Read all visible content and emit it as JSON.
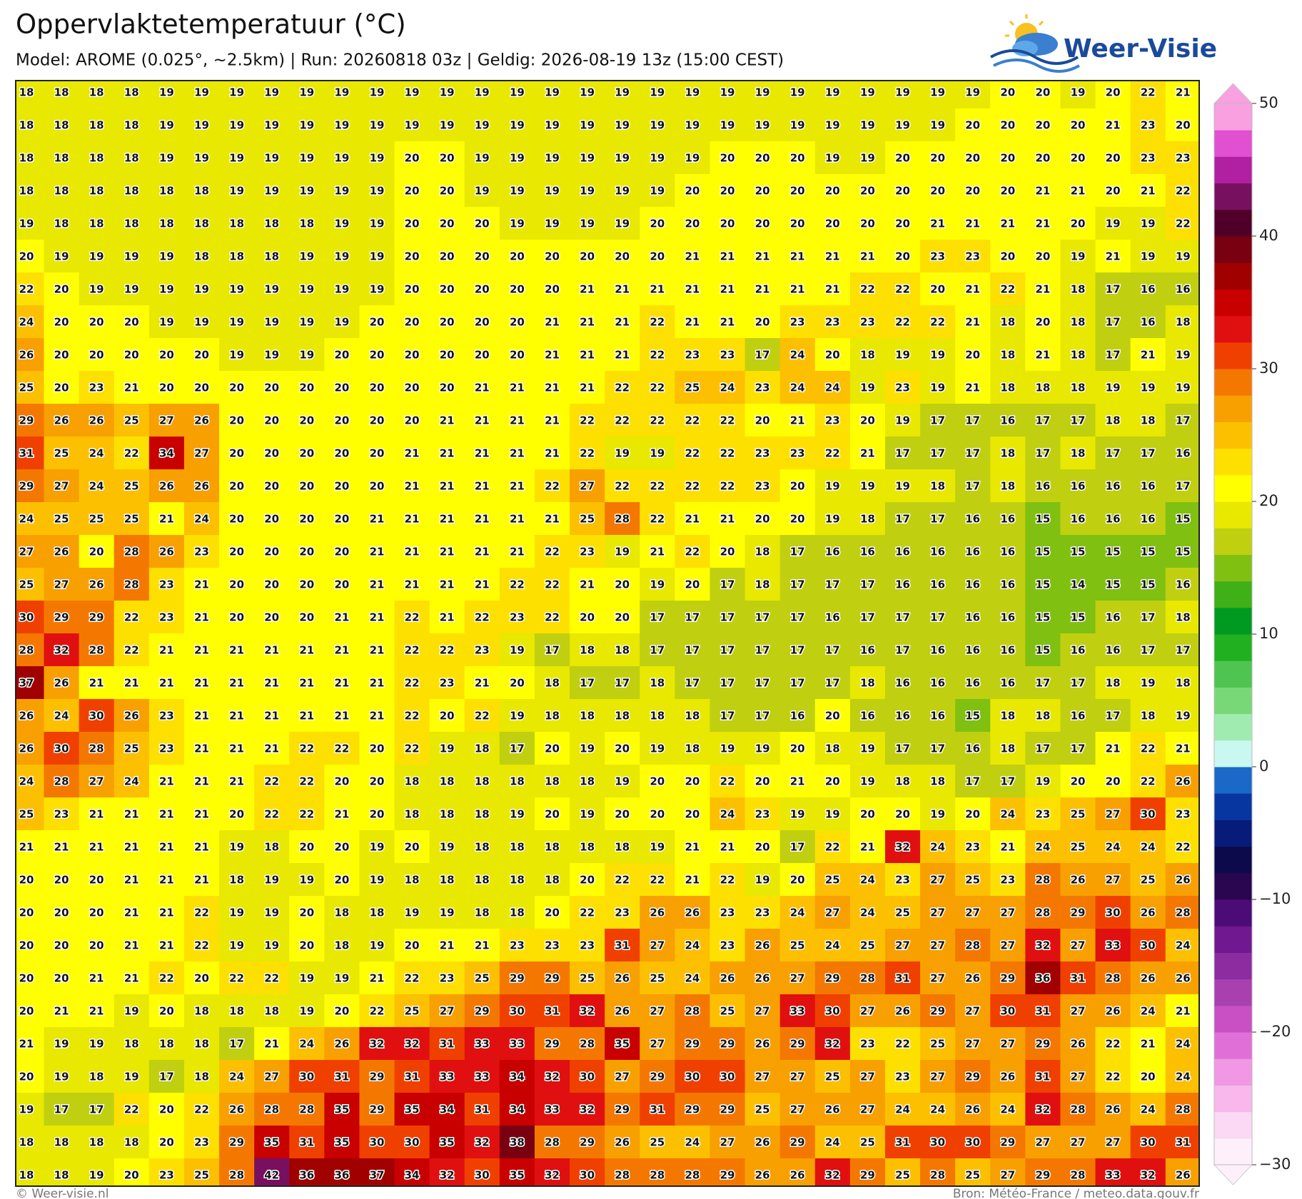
{
  "header": {
    "title": "Oppervlaktetemperatuur (°C)",
    "subtitle": "Model: AROME (0.025°, ~2.5km)  |  Run: 20260818 03z  |  Geldig: 2026-08-19 13z (15:00 CEST)",
    "logo": "Weer-Visie"
  },
  "map": {
    "grid": [
      [
        18,
        18,
        18,
        18,
        19,
        19,
        19,
        19,
        19,
        19,
        19,
        19,
        19,
        19,
        19,
        19,
        19,
        19,
        19,
        19,
        19,
        19,
        19,
        19,
        19,
        19,
        19,
        19,
        20,
        20,
        19,
        20,
        22,
        21
      ],
      [
        18,
        18,
        18,
        18,
        19,
        19,
        19,
        19,
        19,
        19,
        19,
        19,
        19,
        19,
        19,
        19,
        19,
        19,
        19,
        19,
        19,
        19,
        19,
        19,
        19,
        19,
        19,
        20,
        20,
        20,
        20,
        21,
        23,
        20
      ],
      [
        18,
        18,
        18,
        18,
        19,
        19,
        19,
        19,
        19,
        19,
        19,
        20,
        20,
        19,
        19,
        19,
        19,
        19,
        19,
        19,
        20,
        20,
        20,
        19,
        19,
        20,
        20,
        20,
        20,
        20,
        20,
        20,
        23,
        23
      ],
      [
        18,
        18,
        18,
        18,
        18,
        18,
        19,
        19,
        19,
        19,
        19,
        20,
        20,
        19,
        19,
        19,
        19,
        19,
        19,
        20,
        20,
        20,
        20,
        20,
        20,
        20,
        20,
        20,
        20,
        21,
        21,
        20,
        21,
        22
      ],
      [
        19,
        18,
        18,
        18,
        18,
        18,
        18,
        18,
        18,
        19,
        19,
        20,
        20,
        20,
        19,
        19,
        19,
        19,
        20,
        20,
        20,
        20,
        20,
        20,
        20,
        20,
        21,
        21,
        21,
        21,
        20,
        19,
        19,
        22
      ],
      [
        20,
        19,
        19,
        19,
        19,
        18,
        18,
        18,
        19,
        19,
        19,
        20,
        20,
        20,
        20,
        20,
        20,
        20,
        20,
        21,
        21,
        21,
        21,
        21,
        21,
        20,
        23,
        23,
        20,
        20,
        19,
        21,
        19,
        19
      ],
      [
        22,
        20,
        19,
        19,
        19,
        19,
        19,
        19,
        19,
        19,
        19,
        20,
        20,
        20,
        20,
        20,
        21,
        21,
        21,
        21,
        21,
        21,
        21,
        21,
        22,
        22,
        20,
        21,
        22,
        21,
        18,
        17,
        16,
        16
      ],
      [
        24,
        20,
        20,
        20,
        19,
        19,
        19,
        19,
        19,
        19,
        20,
        20,
        20,
        20,
        20,
        21,
        21,
        21,
        22,
        21,
        21,
        20,
        23,
        23,
        23,
        22,
        22,
        21,
        18,
        20,
        18,
        17,
        16,
        18
      ],
      [
        26,
        20,
        20,
        20,
        20,
        20,
        19,
        19,
        19,
        20,
        20,
        20,
        20,
        20,
        20,
        21,
        21,
        21,
        22,
        23,
        23,
        17,
        24,
        20,
        18,
        19,
        19,
        20,
        18,
        21,
        18,
        17,
        21,
        19
      ],
      [
        25,
        20,
        23,
        21,
        20,
        20,
        20,
        20,
        20,
        20,
        20,
        20,
        20,
        21,
        21,
        21,
        21,
        22,
        22,
        25,
        24,
        23,
        24,
        24,
        19,
        23,
        19,
        21,
        18,
        18,
        18,
        19,
        19,
        19
      ],
      [
        29,
        26,
        26,
        25,
        27,
        26,
        20,
        20,
        20,
        20,
        20,
        20,
        21,
        21,
        21,
        21,
        22,
        22,
        22,
        22,
        22,
        20,
        21,
        23,
        20,
        19,
        17,
        17,
        16,
        17,
        17,
        18,
        18,
        17
      ],
      [
        31,
        25,
        24,
        22,
        34,
        27,
        20,
        20,
        20,
        20,
        20,
        21,
        21,
        21,
        21,
        21,
        22,
        19,
        19,
        22,
        22,
        23,
        23,
        22,
        21,
        17,
        17,
        17,
        18,
        17,
        18,
        17,
        17,
        16
      ],
      [
        29,
        27,
        24,
        25,
        26,
        26,
        20,
        20,
        20,
        20,
        20,
        21,
        21,
        21,
        21,
        22,
        27,
        22,
        22,
        22,
        22,
        23,
        20,
        19,
        19,
        19,
        18,
        17,
        18,
        16,
        16,
        16,
        16,
        17
      ],
      [
        24,
        25,
        25,
        25,
        21,
        24,
        20,
        20,
        20,
        20,
        21,
        21,
        21,
        21,
        21,
        21,
        25,
        28,
        22,
        21,
        21,
        20,
        20,
        19,
        18,
        17,
        17,
        16,
        16,
        15,
        16,
        16,
        16,
        15
      ],
      [
        27,
        26,
        20,
        28,
        26,
        23,
        20,
        20,
        20,
        20,
        21,
        21,
        21,
        21,
        21,
        22,
        23,
        19,
        21,
        22,
        20,
        18,
        17,
        16,
        16,
        16,
        16,
        16,
        16,
        15,
        15,
        15,
        15,
        15
      ],
      [
        25,
        27,
        26,
        28,
        23,
        21,
        20,
        20,
        20,
        20,
        21,
        21,
        21,
        21,
        22,
        22,
        21,
        20,
        19,
        20,
        17,
        18,
        17,
        17,
        17,
        16,
        16,
        16,
        16,
        15,
        14,
        15,
        15,
        16
      ],
      [
        30,
        29,
        29,
        22,
        23,
        21,
        20,
        20,
        20,
        21,
        21,
        22,
        21,
        22,
        23,
        22,
        20,
        20,
        17,
        17,
        17,
        17,
        17,
        16,
        17,
        17,
        17,
        16,
        16,
        15,
        15,
        16,
        17,
        18
      ],
      [
        28,
        32,
        28,
        22,
        21,
        21,
        21,
        21,
        21,
        21,
        21,
        22,
        22,
        23,
        19,
        17,
        18,
        18,
        17,
        17,
        17,
        17,
        17,
        17,
        16,
        17,
        16,
        16,
        16,
        15,
        16,
        16,
        17,
        17
      ],
      [
        37,
        26,
        21,
        21,
        21,
        21,
        21,
        21,
        21,
        21,
        21,
        22,
        23,
        21,
        20,
        18,
        17,
        17,
        18,
        17,
        17,
        17,
        17,
        17,
        18,
        16,
        16,
        16,
        16,
        17,
        17,
        18,
        19,
        18
      ],
      [
        26,
        24,
        30,
        26,
        23,
        21,
        21,
        21,
        21,
        21,
        21,
        22,
        20,
        22,
        19,
        18,
        18,
        18,
        18,
        18,
        17,
        17,
        16,
        20,
        16,
        16,
        16,
        15,
        18,
        18,
        16,
        17,
        18,
        19
      ],
      [
        26,
        30,
        28,
        25,
        23,
        21,
        21,
        21,
        22,
        22,
        20,
        22,
        19,
        18,
        17,
        20,
        19,
        20,
        19,
        18,
        19,
        19,
        20,
        18,
        19,
        17,
        17,
        16,
        18,
        17,
        17,
        21,
        22,
        21
      ],
      [
        24,
        28,
        27,
        24,
        21,
        21,
        21,
        22,
        22,
        20,
        20,
        18,
        18,
        18,
        18,
        18,
        18,
        19,
        20,
        20,
        22,
        20,
        21,
        20,
        19,
        18,
        18,
        17,
        17,
        19,
        20,
        20,
        22,
        26
      ],
      [
        25,
        23,
        21,
        21,
        21,
        21,
        20,
        22,
        22,
        21,
        20,
        18,
        18,
        18,
        19,
        20,
        19,
        20,
        20,
        20,
        24,
        23,
        19,
        19,
        20,
        20,
        19,
        20,
        24,
        23,
        25,
        27,
        30,
        23
      ],
      [
        21,
        21,
        21,
        21,
        21,
        21,
        19,
        18,
        20,
        20,
        19,
        20,
        19,
        18,
        18,
        18,
        18,
        18,
        19,
        21,
        21,
        20,
        17,
        22,
        21,
        32,
        24,
        23,
        21,
        24,
        25,
        24,
        24,
        22
      ],
      [
        20,
        20,
        20,
        21,
        21,
        21,
        18,
        19,
        19,
        20,
        19,
        18,
        18,
        18,
        18,
        18,
        20,
        22,
        22,
        21,
        22,
        19,
        20,
        25,
        24,
        23,
        27,
        25,
        23,
        28,
        26,
        27,
        25,
        26
      ],
      [
        20,
        20,
        20,
        21,
        21,
        22,
        19,
        19,
        20,
        18,
        18,
        19,
        19,
        18,
        18,
        20,
        22,
        23,
        26,
        26,
        23,
        23,
        24,
        27,
        24,
        25,
        27,
        27,
        27,
        28,
        29,
        30,
        26,
        28
      ],
      [
        20,
        20,
        20,
        21,
        21,
        22,
        19,
        19,
        20,
        18,
        19,
        20,
        21,
        21,
        23,
        23,
        23,
        31,
        27,
        24,
        23,
        26,
        25,
        24,
        25,
        27,
        27,
        28,
        27,
        32,
        27,
        33,
        30,
        24
      ],
      [
        20,
        20,
        21,
        21,
        22,
        20,
        22,
        22,
        19,
        19,
        21,
        22,
        23,
        25,
        29,
        29,
        25,
        26,
        25,
        24,
        26,
        26,
        27,
        29,
        28,
        31,
        27,
        26,
        29,
        36,
        31,
        28,
        26,
        26
      ],
      [
        20,
        21,
        21,
        19,
        20,
        18,
        18,
        18,
        19,
        20,
        22,
        25,
        27,
        29,
        30,
        31,
        32,
        26,
        27,
        28,
        25,
        27,
        33,
        30,
        27,
        26,
        29,
        27,
        30,
        31,
        27,
        26,
        24,
        21
      ],
      [
        21,
        19,
        19,
        18,
        18,
        18,
        17,
        21,
        24,
        26,
        32,
        32,
        31,
        33,
        33,
        29,
        28,
        35,
        27,
        29,
        29,
        26,
        29,
        32,
        23,
        22,
        25,
        27,
        27,
        29,
        26,
        22,
        21,
        24
      ],
      [
        20,
        19,
        18,
        19,
        17,
        18,
        24,
        27,
        30,
        31,
        29,
        31,
        33,
        33,
        34,
        32,
        30,
        27,
        29,
        30,
        30,
        27,
        27,
        25,
        27,
        23,
        27,
        29,
        26,
        31,
        27,
        22,
        20,
        24
      ],
      [
        19,
        17,
        17,
        22,
        20,
        22,
        26,
        28,
        28,
        35,
        29,
        35,
        34,
        31,
        34,
        33,
        32,
        29,
        31,
        29,
        29,
        25,
        27,
        26,
        27,
        24,
        24,
        26,
        24,
        32,
        28,
        26,
        24,
        28
      ],
      [
        18,
        18,
        18,
        18,
        20,
        23,
        29,
        35,
        31,
        35,
        30,
        30,
        35,
        32,
        38,
        28,
        29,
        26,
        25,
        24,
        27,
        26,
        29,
        24,
        25,
        31,
        30,
        30,
        29,
        27,
        27,
        27,
        30,
        31
      ],
      [
        18,
        18,
        19,
        20,
        23,
        25,
        28,
        42,
        36,
        36,
        37,
        34,
        32,
        30,
        35,
        32,
        30,
        28,
        28,
        28,
        29,
        26,
        26,
        32,
        29,
        25,
        28,
        25,
        27,
        29,
        28,
        33,
        32,
        26
      ]
    ]
  },
  "colorbar": {
    "range": [
      -30,
      50
    ],
    "ticks": [
      {
        "value": -30,
        "label": "−30"
      },
      {
        "value": -20,
        "label": "−20"
      },
      {
        "value": -10,
        "label": "−10"
      },
      0,
      10,
      20,
      30,
      40,
      50
    ],
    "colors": [
      "#fdf0fb",
      "#fbd8f4",
      "#f8b8ec",
      "#f098e4",
      "#e070d8",
      "#c850c4",
      "#a840b0",
      "#8c2ca0",
      "#701890",
      "#4c0c78",
      "#2a0650",
      "#0c0a4a",
      "#061c78",
      "#0836a0",
      "#1a68c8",
      "#c8f8f0",
      "#a0ecb0",
      "#78d878",
      "#50c450",
      "#20b020",
      "#009a20",
      "#40b018",
      "#80c010",
      "#c0d010",
      "#e8e800",
      "#ffff00",
      "#fde000",
      "#fcc000",
      "#f8a000",
      "#f47800",
      "#f04000",
      "#e01010",
      "#c80000",
      "#a00000",
      "#780010",
      "#500028",
      "#781060",
      "#b020a0",
      "#e050d0",
      "#f8a0e0"
    ]
  },
  "footer": {
    "left": "© Weer-visie.nl",
    "right": "Bron: Météo-France / meteo.data.gouv.fr"
  }
}
